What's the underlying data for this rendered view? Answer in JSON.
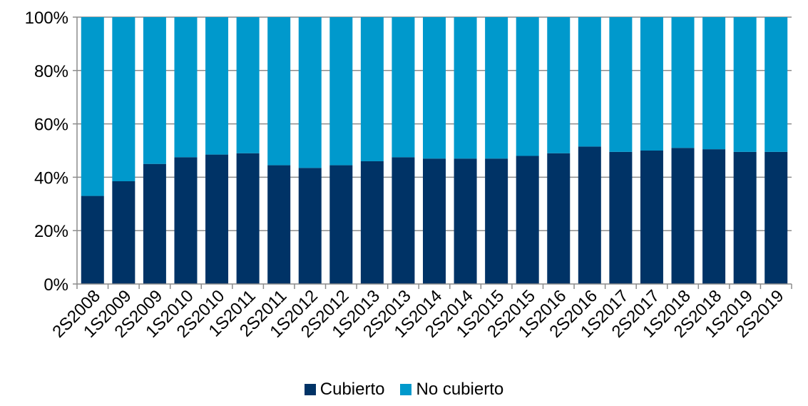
{
  "chart_data": {
    "type": "bar",
    "stacked": true,
    "categories": [
      "2S2008",
      "1S2009",
      "2S2009",
      "1S2010",
      "2S2010",
      "1S2011",
      "2S2011",
      "1S2012",
      "2S2012",
      "1S2013",
      "2S2013",
      "1S2014",
      "2S2014",
      "1S2015",
      "2S2015",
      "1S2016",
      "2S2016",
      "1S2017",
      "2S2017",
      "1S2018",
      "2S2018",
      "1S2019",
      "2S2019"
    ],
    "series": [
      {
        "name": "Cubierto",
        "color": "#003366",
        "values": [
          33,
          38.5,
          45,
          47.5,
          48.5,
          49,
          44.5,
          43.5,
          44.5,
          46,
          47.5,
          47,
          47,
          47,
          48,
          49,
          51.5,
          49.5,
          50,
          51,
          50.5,
          49.5,
          49.5
        ]
      },
      {
        "name": "No cubierto",
        "color": "#0099CC",
        "values": [
          67,
          61.5,
          55,
          52.5,
          51.5,
          51,
          55.5,
          56.5,
          55.5,
          54,
          52.5,
          53,
          53,
          53,
          52,
          51,
          48.5,
          50.5,
          50,
          49,
          49.5,
          50.5,
          50.5
        ]
      }
    ],
    "yticks": [
      "0%",
      "20%",
      "40%",
      "60%",
      "80%",
      "100%"
    ],
    "ylim": [
      0,
      100
    ],
    "grid": true,
    "legend_position": "bottom"
  }
}
